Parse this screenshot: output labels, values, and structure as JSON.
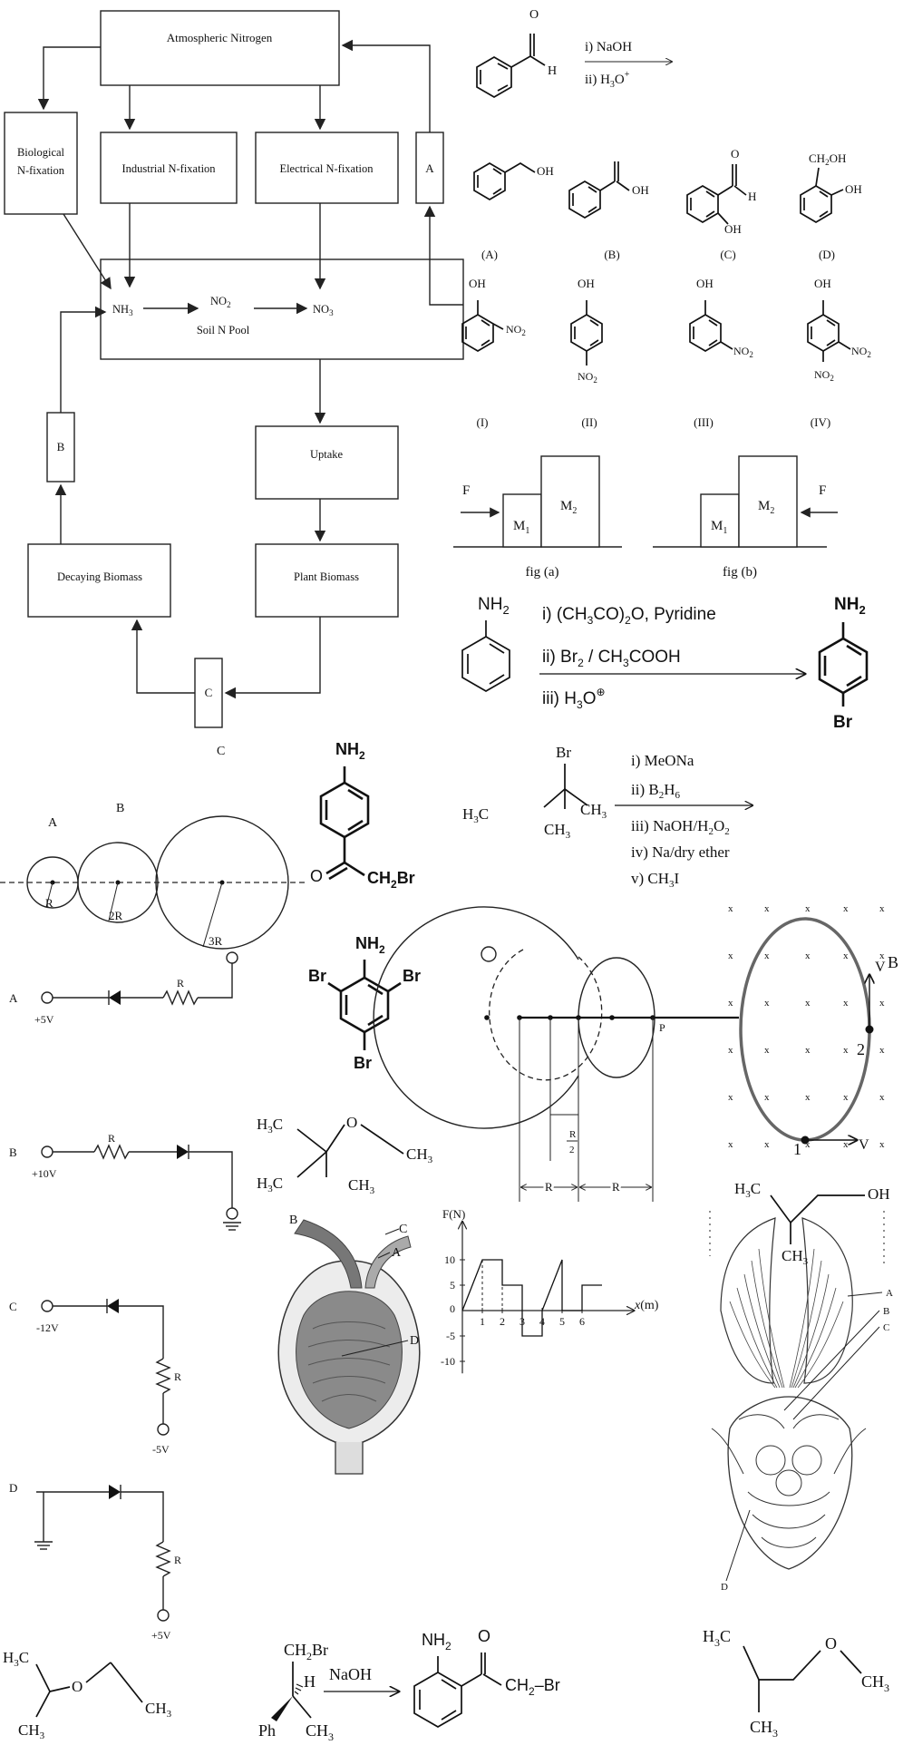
{
  "nitrogen_cycle": {
    "atmospheric": "Atmospheric Nitrogen",
    "biological": [
      "Biological",
      "N-fixation"
    ],
    "industrial": "Industrial N-fixation",
    "electrical": "Electrical N-fixation",
    "box_a": "A",
    "box_b": "B",
    "box_c": "C",
    "nh3": "NH",
    "nh3_sub": "3",
    "no2": "NO",
    "no2_sub": "2",
    "no3": "NO",
    "no3_sub": "3",
    "soil_pool": "Soil N Pool",
    "uptake": "Uptake",
    "plant_biomass": "Plant Biomass",
    "decaying_biomass": "Decaying Biomass"
  },
  "benzaldehyde_reaction": {
    "h": "H",
    "o": "O",
    "step1": "i)  NaOH",
    "step2": "ii)  H",
    "step2_sub": "3",
    "step2_rest": "O",
    "step2_sup": "+"
  },
  "options_abcd": {
    "oh_a": "OH",
    "oh_b": "OH",
    "h_c": "H",
    "oh_c": "OH",
    "o_c": "O",
    "ch2oh_d": "CH",
    "ch2oh_d_sub": "2",
    "ch2oh_d_rest": "OH",
    "oh_d": "OH",
    "labels": [
      "(A)",
      "(B)",
      "(C)",
      "(D)"
    ]
  },
  "nitrophenols": {
    "oh": "OH",
    "no2": "NO",
    "sub2": "2",
    "labels": [
      "(I)",
      "(II)",
      "(III)",
      "(IV)"
    ]
  },
  "blocks": {
    "force": "F",
    "m1": "M",
    "m2": "M",
    "sub1": "1",
    "sub2": "2",
    "fig_a": "fig (a)",
    "fig_b": "fig (b)"
  },
  "aniline_reaction": {
    "nh2": "NH",
    "sub2": "2",
    "step1": "i)  (CH",
    "step1_sub": "3",
    "step1_rest": "CO)",
    "step1_sub2": "2",
    "step1_tail": "O, Pyridine",
    "step2": "ii)  Br",
    "step2_sub": "2",
    "step2_rest": " / CH",
    "step2_sub2": "3",
    "step2_tail": "COOH",
    "step3": "iii)  H",
    "step3_sub": "3",
    "step3_rest": "O",
    "step3_sup": "⊕",
    "product_nh2": "NH",
    "product_br": "Br"
  },
  "tbutyl_reaction": {
    "br": "Br",
    "h3c": "H",
    "ch3_right": "CH",
    "ch3_bottom": "CH",
    "sub3": "3",
    "steps": [
      "i)  MeONa",
      "ii)  B",
      "iii) NaOH/H",
      "iv) Na/dry ether",
      "v) CH"
    ],
    "step2_sub2": "2",
    "step2_sub6": "6",
    "step3_sub": "2",
    "step3_tail": "O",
    "step3_sub2": "2",
    "step5_sub": "3",
    "step5_tail": "I"
  },
  "spheres": {
    "a": "A",
    "b": "B",
    "c": "C",
    "r1": "R",
    "r2": "2R",
    "r3": "3R"
  },
  "aryl_ketone": {
    "nh2": "NH",
    "sub2": "2",
    "o": "O",
    "ch2br": "CH",
    "ch2br_rest": "Br"
  },
  "tribromoaniline": {
    "nh2": "NH",
    "sub2": "2",
    "br": "Br"
  },
  "circles_figure": {
    "p": "P",
    "r_half_top": "R",
    "r_half_bot": "2",
    "r_left": "R",
    "r_right": "R"
  },
  "magnetic_figure": {
    "b": "B",
    "v": "V",
    "p1": "1",
    "p2": "2",
    "cross": "x"
  },
  "diode_circuits": {
    "a": {
      "label": "A",
      "voltage": "+5V",
      "r": "R"
    },
    "b": {
      "label": "B",
      "voltage": "+10V",
      "r": "R"
    },
    "c": {
      "label": "C",
      "voltage": "-12V",
      "r": "R",
      "bottom": "-5V"
    },
    "d": {
      "label": "D",
      "r": "R",
      "bottom": "+5V"
    }
  },
  "ether_tbutyl": {
    "h3c": "H",
    "sub3": "3",
    "c": "C",
    "o": "O",
    "ch3": "CH"
  },
  "kidney_figure": {
    "a": "A",
    "b": "B",
    "c": "C",
    "d": "D"
  },
  "force_graph": {
    "ylabel": "F(N)",
    "xlabel": "x",
    "xunit": "(m)",
    "origin": "0"
  },
  "chart_data": {
    "type": "line",
    "title": "",
    "xlabel": "x(m)",
    "ylabel": "F(N)",
    "x": [
      0,
      1,
      2,
      2,
      3,
      3,
      4,
      4,
      5,
      5,
      6,
      6,
      7
    ],
    "y": [
      0,
      10,
      10,
      5,
      5,
      -5,
      -5,
      0,
      10,
      0,
      0,
      5,
      5
    ],
    "xticks": [
      1,
      2,
      3,
      4,
      5,
      6
    ],
    "yticks": [
      10,
      5,
      0,
      -5,
      -10
    ],
    "xlim": [
      0,
      8.6
    ],
    "ylim": [
      -12,
      12
    ]
  },
  "dental_figure": {
    "a": "A",
    "b": "B",
    "c": "C",
    "d": "D"
  },
  "alcohol": {
    "h3c": "H",
    "sub3": "3",
    "c": "C",
    "oh": "OH",
    "ch3": "CH"
  },
  "ether_isopropyl": {
    "h3c": "H",
    "sub3": "3",
    "c": "C",
    "o": "O",
    "ch3": "CH"
  },
  "chiral_reaction": {
    "ch2br": "CH",
    "sub2": "2",
    "br": "Br",
    "h": "H",
    "ph": "Ph",
    "ch3": "CH",
    "sub3": "3",
    "reagent": "NaOH",
    "nh2": "NH",
    "o": "O",
    "product_tail": "CH",
    "product_tail_rest": "–Br"
  },
  "ether_isobutyl": {
    "h3c": "H",
    "sub3": "3",
    "c": "C",
    "o": "O",
    "ch3": "CH"
  }
}
